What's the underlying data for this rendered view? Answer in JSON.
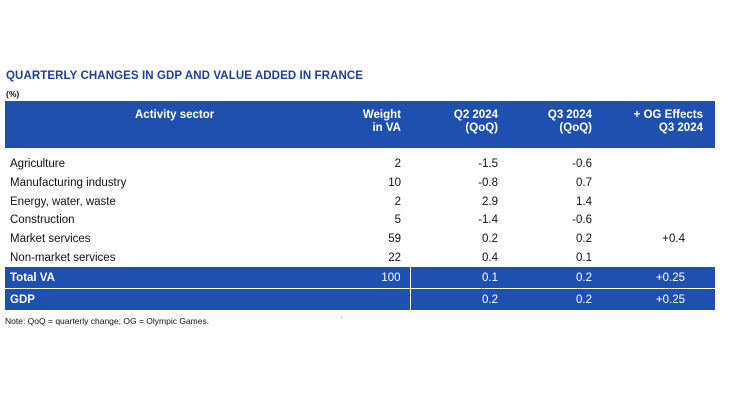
{
  "title": "QUARTERLY CHANGES IN GDP AND VALUE ADDED IN FRANCE",
  "unit": "(%)",
  "headers": {
    "sector": "Activity sector",
    "weight_l1": "Weight",
    "weight_l2": "in VA",
    "q2_l1": "Q2 2024",
    "q2_l2": "(QoQ)",
    "q3_l1": "Q3 2024",
    "q3_l2": "(QoQ)",
    "og_l1": "+ OG Effects",
    "og_l2": "Q3 2024"
  },
  "rows": [
    {
      "sector": "Agriculture",
      "weight": "2",
      "q2": "-1.5",
      "q3": "-0.6",
      "og": ""
    },
    {
      "sector": "Manufacturing industry",
      "weight": "10",
      "q2": "-0.8",
      "q3": "0.7",
      "og": ""
    },
    {
      "sector": "Energy, water, waste",
      "weight": "2",
      "q2": "2.9",
      "q3": "1.4",
      "og": ""
    },
    {
      "sector": "Construction",
      "weight": "5",
      "q2": "-1.4",
      "q3": "-0.6",
      "og": ""
    },
    {
      "sector": "Market services",
      "weight": "59",
      "q2": "0.2",
      "q3": "0.2",
      "og": "+0.4"
    },
    {
      "sector": "Non-market services",
      "weight": "22",
      "q2": "0.4",
      "q3": "0.1",
      "og": ""
    }
  ],
  "totals": [
    {
      "sector": "Total VA",
      "weight": "100",
      "q2": "0.1",
      "q3": "0.2",
      "og": "+0.25"
    },
    {
      "sector": "GDP",
      "weight": "",
      "q2": "0.2",
      "q3": "0.2",
      "og": "+0.25"
    }
  ],
  "colors": {
    "header_bg": "#1f50b0",
    "title": "#1f3f9e"
  },
  "note": "Note: QoQ = quarterly change; OG = Olympic Games."
}
